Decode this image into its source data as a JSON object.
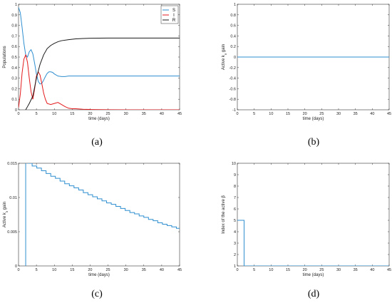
{
  "colors": {
    "S": "#2f8fd0",
    "I": "#e41a1c",
    "R": "#1a1a1a",
    "step": "#2f8fd0",
    "axes": "#333333",
    "grid": "#dddddd"
  },
  "chart_data": [
    {
      "panel": "(a)",
      "type": "line",
      "xlabel": "time (days)",
      "ylabel": "Populations",
      "xlim": [
        0,
        45
      ],
      "ylim": [
        0,
        1
      ],
      "xticks": [
        0,
        5,
        10,
        15,
        20,
        25,
        30,
        35,
        40,
        45
      ],
      "yticks": [
        0,
        0.1,
        0.2,
        0.3,
        0.4,
        0.5,
        0.6,
        0.7,
        0.8,
        0.9,
        1
      ],
      "legend": {
        "position": "top-right",
        "entries": [
          "S",
          "I",
          "R"
        ]
      },
      "series": [
        {
          "name": "S",
          "color_key": "S",
          "x": [
            0,
            0.5,
            1,
            1.5,
            2,
            2.5,
            3,
            3.5,
            4,
            4.5,
            5,
            5.5,
            6,
            6.5,
            7,
            7.5,
            8,
            8.5,
            9,
            9.5,
            10,
            11,
            12,
            13,
            14,
            16,
            18,
            20,
            25,
            30,
            35,
            40,
            45
          ],
          "y": [
            0.97,
            0.92,
            0.78,
            0.63,
            0.52,
            0.5,
            0.55,
            0.57,
            0.53,
            0.44,
            0.34,
            0.27,
            0.245,
            0.25,
            0.28,
            0.315,
            0.345,
            0.36,
            0.36,
            0.355,
            0.34,
            0.32,
            0.315,
            0.315,
            0.32,
            0.32,
            0.32,
            0.32,
            0.32,
            0.32,
            0.32,
            0.32,
            0.32
          ]
        },
        {
          "name": "I",
          "color_key": "I",
          "x": [
            0,
            0.5,
            1,
            1.5,
            2,
            2.5,
            3,
            3.5,
            4,
            4.5,
            5,
            5.5,
            6,
            6.5,
            7,
            7.5,
            8,
            9,
            10,
            11,
            12,
            13,
            14,
            15,
            16,
            18,
            20,
            25,
            30,
            35,
            40,
            45
          ],
          "y": [
            0.02,
            0.15,
            0.35,
            0.48,
            0.52,
            0.45,
            0.3,
            0.17,
            0.1,
            0.2,
            0.32,
            0.36,
            0.33,
            0.25,
            0.16,
            0.1,
            0.06,
            0.05,
            0.06,
            0.07,
            0.05,
            0.03,
            0.015,
            0.01,
            0.01,
            0.005,
            0.003,
            0.001,
            0,
            0,
            0,
            0
          ]
        },
        {
          "name": "R",
          "color_key": "R",
          "x": [
            2,
            2.5,
            3,
            4,
            5,
            6,
            7,
            8,
            9,
            10,
            11,
            12,
            14,
            16,
            18,
            20,
            25,
            30,
            35,
            40,
            45
          ],
          "y": [
            0,
            0.03,
            0.06,
            0.13,
            0.3,
            0.43,
            0.52,
            0.58,
            0.61,
            0.63,
            0.645,
            0.655,
            0.665,
            0.672,
            0.676,
            0.678,
            0.68,
            0.68,
            0.68,
            0.68,
            0.68
          ]
        }
      ]
    },
    {
      "panel": "(b)",
      "type": "line",
      "xlabel": "time (days)",
      "ylabel": "Active k",
      "ylabel_sub": "v",
      "ylabel_tail": " gain",
      "xlim": [
        0,
        45
      ],
      "ylim": [
        -1,
        1
      ],
      "xticks": [
        0,
        5,
        10,
        15,
        20,
        25,
        30,
        35,
        40,
        45
      ],
      "yticks": [
        -1,
        -0.8,
        -0.6,
        -0.4,
        -0.2,
        0,
        0.2,
        0.4,
        0.6,
        0.8,
        1
      ],
      "series": [
        {
          "x": [
            0,
            45
          ],
          "y": [
            0,
            0
          ]
        }
      ]
    },
    {
      "panel": "(c)",
      "type": "line",
      "xlabel": "time (days)",
      "ylabel": "Active k",
      "ylabel_sub": "v",
      "ylabel_tail": " gain",
      "xlim": [
        0,
        45
      ],
      "ylim": [
        0,
        0.015
      ],
      "xticks": [
        0,
        5,
        10,
        15,
        20,
        25,
        30,
        35,
        40,
        45
      ],
      "yticks": [
        0,
        0.005,
        0.01,
        0.015
      ],
      "ytick_labels": [
        "0",
        "0.005",
        "0.01",
        "0.015"
      ],
      "step_spike": {
        "x0": 2,
        "x1": 2.5
      },
      "series": [
        {
          "x": [
            2.5,
            3.8,
            5.1,
            6.4,
            7.7,
            9,
            10.3,
            11.6,
            12.9,
            14.2,
            15.5,
            16.8,
            18.1,
            19.4,
            20.7,
            22,
            23.3,
            24.6,
            25.9,
            27.2,
            28.5,
            29.8,
            31.1,
            32.4,
            33.7,
            35,
            36.3,
            37.6,
            38.9,
            40.2,
            41.5,
            42.8,
            44.1,
            45
          ],
          "y": [
            0.015,
            0.0146,
            0.0143,
            0.0139,
            0.0135,
            0.0131,
            0.0128,
            0.0124,
            0.012,
            0.0117,
            0.0114,
            0.0111,
            0.0107,
            0.0104,
            0.0101,
            0.0098,
            0.0095,
            0.0092,
            0.009,
            0.0087,
            0.0084,
            0.0081,
            0.0078,
            0.0076,
            0.0073,
            0.0071,
            0.0068,
            0.0066,
            0.0063,
            0.0061,
            0.0059,
            0.0057,
            0.0055,
            0.0055
          ]
        }
      ]
    },
    {
      "panel": "(d)",
      "type": "line",
      "xlabel": "time (days)",
      "ylabel": "Index of the active",
      "ylabel_tail": " β",
      "xlim": [
        0,
        45
      ],
      "ylim": [
        1,
        10
      ],
      "xticks": [
        0,
        5,
        10,
        15,
        20,
        25,
        30,
        35,
        40,
        45
      ],
      "yticks": [
        1,
        2,
        3,
        4,
        5,
        6,
        7,
        8,
        9,
        10
      ],
      "series": [
        {
          "x": [
            0,
            2,
            2,
            2.5,
            2.5,
            45
          ],
          "y": [
            5,
            5,
            1,
            1,
            1,
            1
          ]
        }
      ]
    }
  ]
}
